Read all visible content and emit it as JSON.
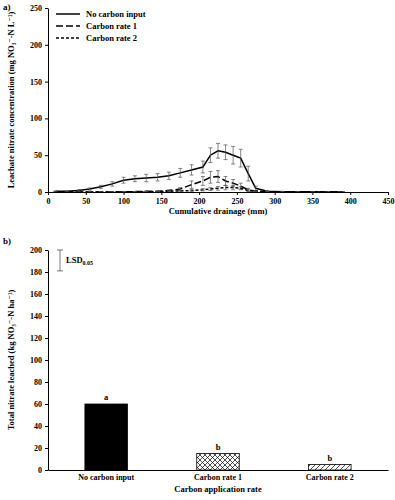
{
  "chart_data": [
    {
      "type": "line",
      "title": "a)",
      "xlabel": "Cumulative drainage (mm)",
      "ylabel": "Leachate nitrate concentration (mg NO₃⁻-N L⁻¹)",
      "xlim": [
        0,
        450
      ],
      "xticks": [
        0,
        50,
        100,
        150,
        200,
        250,
        300,
        350,
        400,
        450
      ],
      "ylim": [
        0,
        250
      ],
      "yticks": [
        0,
        50,
        100,
        150,
        200,
        250
      ],
      "legend": "upper left",
      "x": [
        10,
        25,
        40,
        55,
        70,
        85,
        100,
        115,
        130,
        145,
        160,
        175,
        190,
        205,
        215,
        225,
        235,
        245,
        255,
        265,
        275,
        290,
        310,
        330,
        350,
        370,
        390
      ],
      "series": [
        {
          "name": "No carbon input",
          "color": "#000000",
          "line_style": "solid",
          "values": [
            1,
            1,
            2,
            4,
            7,
            11,
            16,
            18,
            19,
            20,
            22,
            26,
            30,
            34,
            50,
            56,
            54,
            50,
            46,
            25,
            5,
            1,
            0.5,
            0.3,
            0.2,
            0.1,
            0.1
          ],
          "errors": [
            0.5,
            0.5,
            1,
            1.5,
            2,
            3,
            4,
            4,
            5,
            5,
            5,
            6,
            7,
            8,
            10,
            10,
            10,
            12,
            12,
            10,
            3,
            1,
            0.5,
            0.3,
            0.2,
            0.1,
            0.1
          ]
        },
        {
          "name": "Carbon rate 1",
          "color": "#000000",
          "line_style": "longdash",
          "values": [
            0,
            0,
            0,
            0,
            0,
            0,
            0.5,
            0.5,
            1,
            1,
            2,
            4,
            10,
            15,
            20,
            21,
            15,
            12,
            8,
            3,
            1,
            0.5,
            0.3,
            0.2,
            0.1,
            0.1,
            0
          ],
          "errors": [
            0,
            0,
            0,
            0,
            0,
            0,
            0.3,
            0.3,
            0.5,
            0.5,
            1,
            2,
            5,
            6,
            8,
            8,
            6,
            5,
            4,
            2,
            1,
            0.3,
            0.2,
            0.1,
            0.1,
            0.1,
            0
          ]
        },
        {
          "name": "Carbon rate 2",
          "color": "#000000",
          "line_style": "dash",
          "values": [
            0,
            0,
            0,
            0,
            0,
            0,
            0,
            0,
            0.5,
            0.5,
            1,
            1.5,
            2,
            3,
            4,
            5,
            6,
            6,
            5,
            2,
            1,
            0.3,
            0.2,
            0.1,
            0,
            0,
            0
          ],
          "errors": [
            0,
            0,
            0,
            0,
            0,
            0,
            0,
            0,
            0.3,
            0.3,
            0.5,
            1,
            1,
            1.5,
            2,
            2.5,
            3,
            3,
            2,
            1,
            0.5,
            0.2,
            0.1,
            0.1,
            0,
            0,
            0
          ]
        }
      ]
    },
    {
      "type": "bar",
      "title": "b)",
      "xlabel": "Carbon application rate",
      "ylabel": "Total nitrate leached (kg NO₃⁻-N ha⁻¹)",
      "categories": [
        "No carbon input",
        "Carbon rate 1",
        "Carbon rate 2"
      ],
      "values": [
        60,
        15,
        5
      ],
      "colors": [
        "#000000",
        "#000000",
        "#000000"
      ],
      "letters": [
        "a",
        "b",
        "b"
      ],
      "lsd": {
        "label": "LSD0.05",
        "value": 19
      },
      "ylim": [
        0,
        200
      ],
      "yticks": [
        0,
        20,
        40,
        60,
        80,
        100,
        120,
        140,
        160,
        180,
        200
      ]
    }
  ]
}
